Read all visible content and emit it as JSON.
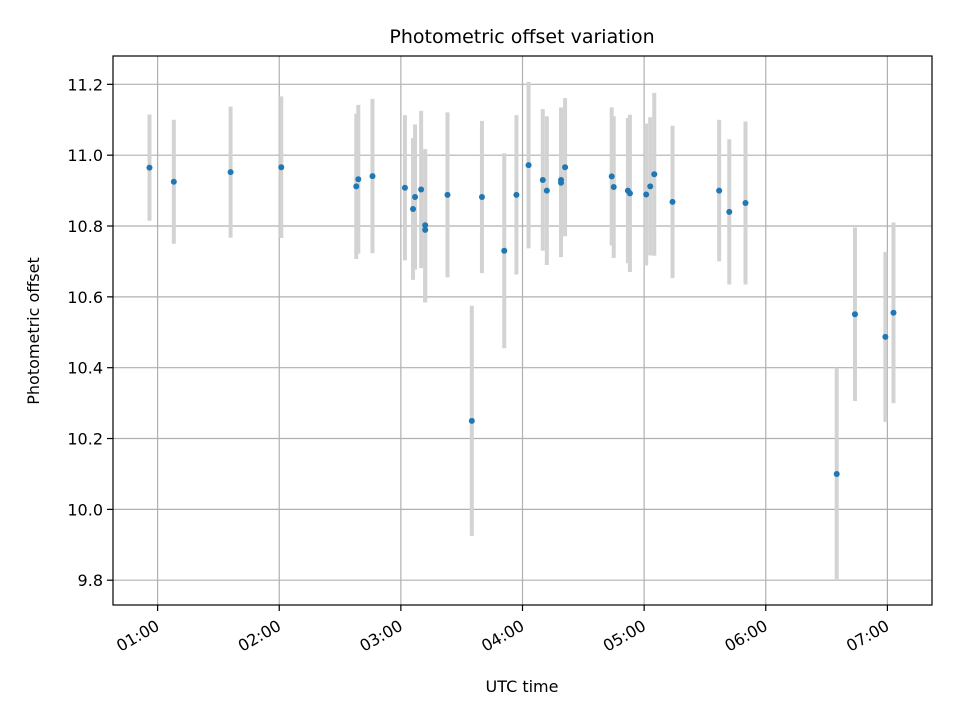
{
  "chart_data": {
    "type": "scatter",
    "title": "Photometric offset variation",
    "xlabel": "UTC time",
    "ylabel": "Photometric offset",
    "xlim": [
      "00:38",
      "07:22"
    ],
    "ylim": [
      9.73,
      11.28
    ],
    "x_ticks": [
      "01:00",
      "02:00",
      "03:00",
      "04:00",
      "05:00",
      "06:00",
      "07:00"
    ],
    "y_ticks": [
      "9.8",
      "10.0",
      "10.2",
      "10.4",
      "10.6",
      "10.8",
      "11.0",
      "11.2"
    ],
    "grid": true,
    "point_color": "#1f77b4",
    "errorbar_color": "#d3d3d3",
    "points": [
      {
        "x": "00:56",
        "y": 10.965,
        "err": 0.15
      },
      {
        "x": "01:08",
        "y": 10.925,
        "err": 0.175
      },
      {
        "x": "01:36",
        "y": 10.952,
        "err": 0.185
      },
      {
        "x": "02:01",
        "y": 10.966,
        "err": 0.2
      },
      {
        "x": "02:38",
        "y": 10.912,
        "err": 0.205
      },
      {
        "x": "02:39",
        "y": 10.932,
        "err": 0.21
      },
      {
        "x": "02:46",
        "y": 10.941,
        "err": 0.218
      },
      {
        "x": "03:02",
        "y": 10.908,
        "err": 0.205
      },
      {
        "x": "03:06",
        "y": 10.848,
        "err": 0.2
      },
      {
        "x": "03:07",
        "y": 10.882,
        "err": 0.205
      },
      {
        "x": "03:10",
        "y": 10.903,
        "err": 0.222
      },
      {
        "x": "03:12",
        "y": 10.802,
        "err": 0.215
      },
      {
        "x": "03:12",
        "y": 10.789,
        "err": 0.205
      },
      {
        "x": "03:23",
        "y": 10.888,
        "err": 0.233
      },
      {
        "x": "03:35",
        "y": 10.25,
        "err": 0.325
      },
      {
        "x": "03:40",
        "y": 10.882,
        "err": 0.215
      },
      {
        "x": "03:51",
        "y": 10.73,
        "err": 0.275
      },
      {
        "x": "03:57",
        "y": 10.888,
        "err": 0.225
      },
      {
        "x": "04:03",
        "y": 10.972,
        "err": 0.235
      },
      {
        "x": "04:10",
        "y": 10.93,
        "err": 0.2
      },
      {
        "x": "04:12",
        "y": 10.9,
        "err": 0.21
      },
      {
        "x": "04:19",
        "y": 10.93,
        "err": 0.205
      },
      {
        "x": "04:19",
        "y": 10.922,
        "err": 0.21
      },
      {
        "x": "04:21",
        "y": 10.966,
        "err": 0.195
      },
      {
        "x": "04:44",
        "y": 10.94,
        "err": 0.195
      },
      {
        "x": "04:45",
        "y": 10.91,
        "err": 0.2
      },
      {
        "x": "04:52",
        "y": 10.9,
        "err": 0.205
      },
      {
        "x": "04:53",
        "y": 10.892,
        "err": 0.222
      },
      {
        "x": "05:01",
        "y": 10.889,
        "err": 0.2
      },
      {
        "x": "05:03",
        "y": 10.912,
        "err": 0.195
      },
      {
        "x": "05:05",
        "y": 10.946,
        "err": 0.23
      },
      {
        "x": "05:14",
        "y": 10.868,
        "err": 0.215
      },
      {
        "x": "05:37",
        "y": 10.9,
        "err": 0.2
      },
      {
        "x": "05:42",
        "y": 10.84,
        "err": 0.205
      },
      {
        "x": "05:50",
        "y": 10.865,
        "err": 0.23
      },
      {
        "x": "06:35",
        "y": 10.1,
        "err": 0.3
      },
      {
        "x": "06:44",
        "y": 10.551,
        "err": 0.245
      },
      {
        "x": "06:59",
        "y": 10.487,
        "err": 0.24
      },
      {
        "x": "07:03",
        "y": 10.555,
        "err": 0.255
      }
    ]
  }
}
